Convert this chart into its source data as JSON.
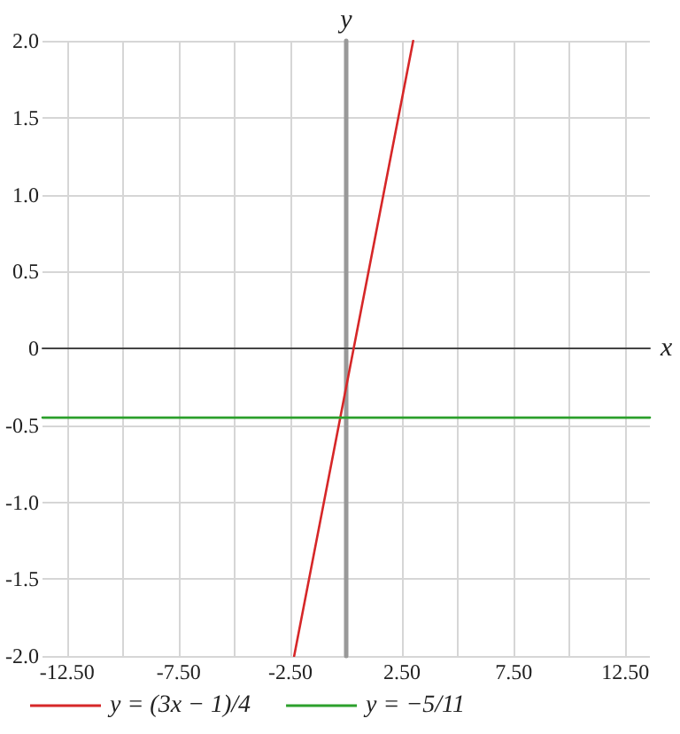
{
  "chart_data": {
    "type": "line",
    "xlabel": "x",
    "ylabel": "y",
    "xlim": [
      -13.6,
      13.6
    ],
    "ylim": [
      -2,
      2
    ],
    "xticks": [
      {
        "value": -12.5,
        "label": "-12.50"
      },
      {
        "value": -10,
        "label": null
      },
      {
        "value": -7.5,
        "label": "-7.50"
      },
      {
        "value": -5,
        "label": null
      },
      {
        "value": -2.5,
        "label": "-2.50"
      },
      {
        "value": 0,
        "label": null
      },
      {
        "value": 2.5,
        "label": "2.50"
      },
      {
        "value": 5,
        "label": null
      },
      {
        "value": 7.5,
        "label": "7.50"
      },
      {
        "value": 10,
        "label": null
      },
      {
        "value": 12.5,
        "label": "12.50"
      }
    ],
    "yticks": [
      {
        "value": -2,
        "label": "-2.0"
      },
      {
        "value": -1.5,
        "label": "-1.5"
      },
      {
        "value": -1,
        "label": "-1.0"
      },
      {
        "value": -0.5,
        "label": "-0.5"
      },
      0,
      {
        "value": 0.5,
        "label": "0.5"
      },
      {
        "value": 1,
        "label": "1.0"
      },
      {
        "value": 1.5,
        "label": "1.5"
      },
      {
        "value": 2,
        "label": "2.0"
      }
    ],
    "series": [
      {
        "name": "y = (3x − 1)/4",
        "color": "#d62728",
        "x": [
          -2.33,
          3
        ],
        "values": [
          -2,
          2
        ]
      },
      {
        "name": "y = −5/11",
        "color": "#2ca02c",
        "x": [
          -13.6,
          13.6
        ],
        "values": [
          -0.45,
          -0.45
        ]
      }
    ],
    "grid": true,
    "legend": "bottom left",
    "marker": "none",
    "line_style": "solid"
  }
}
